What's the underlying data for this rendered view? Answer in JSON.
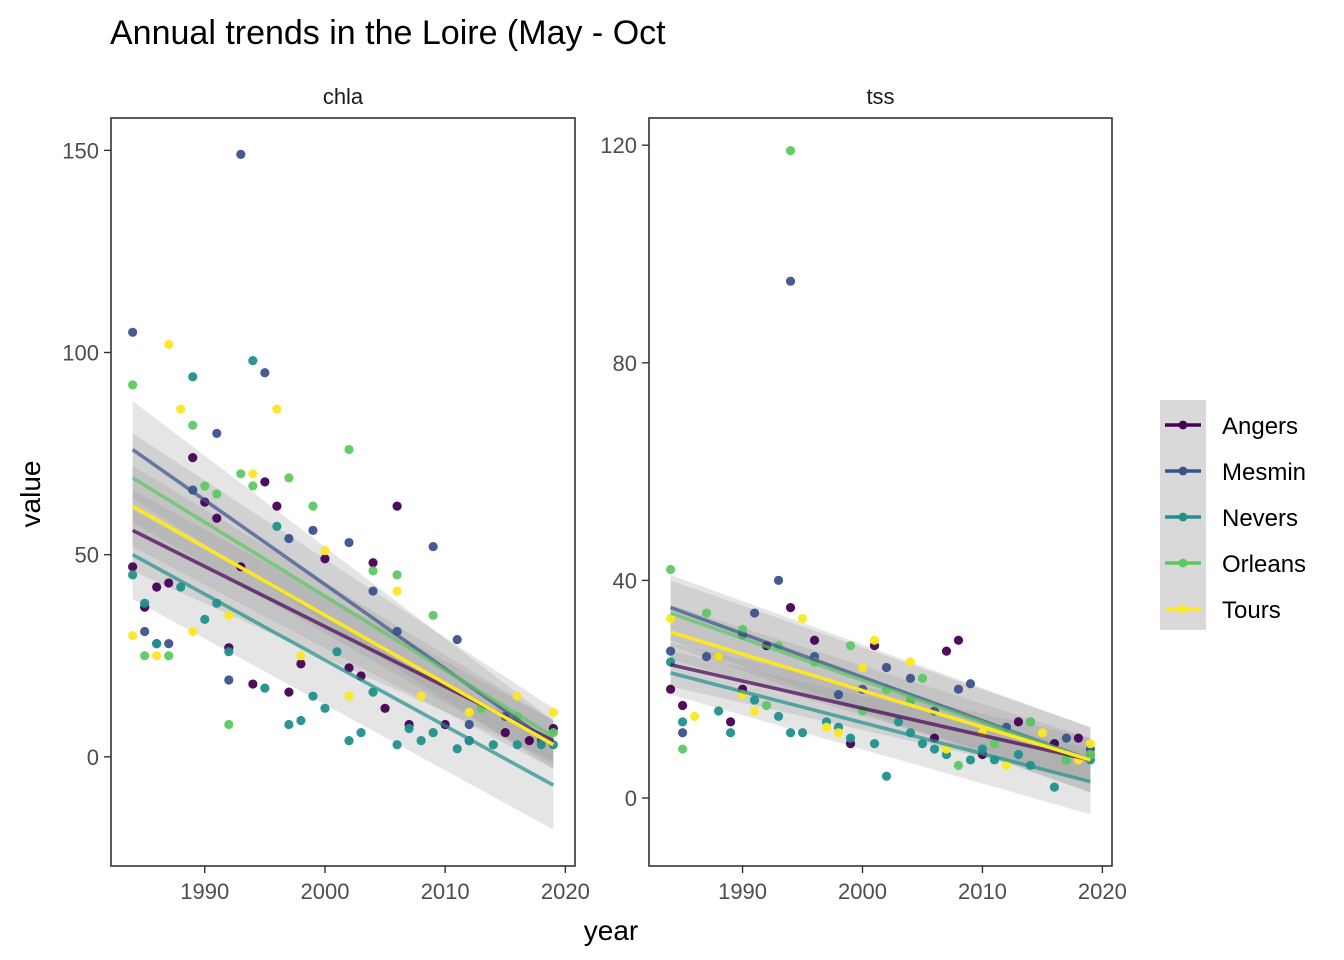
{
  "colors": {
    "Angers": "#440154",
    "Mesmin": "#3b528b",
    "Nevers": "#21908c",
    "Orleans": "#5dc863",
    "Tours": "#fde725",
    "ribbon": "#999999",
    "panel_border": "#333333",
    "axis_text": "#4d4d4d"
  },
  "chart_data": {
    "type": "scatter",
    "title": "Annual trends in the Loire (May - Oct",
    "xlabel": "year",
    "ylabel": "value",
    "legend": {
      "placement": "right",
      "entries": [
        "Angers",
        "Mesmin",
        "Nevers",
        "Orleans",
        "Tours"
      ]
    },
    "grid": false,
    "panels": [
      {
        "name": "chla",
        "xlim": [
          1982.2,
          2020.8
        ],
        "ylim": [
          -27,
          158
        ],
        "xticks": [
          1990,
          2000,
          2010,
          2020
        ],
        "yticks": [
          0,
          50,
          100,
          150
        ],
        "series": [
          {
            "name": "Angers",
            "points": [
              [
                1984,
                47
              ],
              [
                1985,
                37
              ],
              [
                1986,
                42
              ],
              [
                1987,
                43
              ],
              [
                1989,
                74
              ],
              [
                1990,
                63
              ],
              [
                1991,
                59
              ],
              [
                1992,
                27
              ],
              [
                1993,
                47
              ],
              [
                1994,
                18
              ],
              [
                1995,
                68
              ],
              [
                1996,
                62
              ],
              [
                1997,
                16
              ],
              [
                1998,
                23
              ],
              [
                2000,
                49
              ],
              [
                2002,
                22
              ],
              [
                2003,
                20
              ],
              [
                2004,
                48
              ],
              [
                2005,
                12
              ],
              [
                2006,
                62
              ],
              [
                2007,
                8
              ],
              [
                2010,
                8
              ],
              [
                2012,
                4
              ],
              [
                2015,
                6
              ],
              [
                2017,
                4
              ],
              [
                2019,
                7
              ]
            ],
            "fit": [
              56,
              4
            ],
            "se": [
              10,
              5
            ]
          },
          {
            "name": "Mesmin",
            "points": [
              [
                1984,
                105
              ],
              [
                1985,
                31
              ],
              [
                1986,
                28
              ],
              [
                1987,
                28
              ],
              [
                1989,
                66
              ],
              [
                1991,
                80
              ],
              [
                1992,
                19
              ],
              [
                1993,
                149
              ],
              [
                1995,
                95
              ],
              [
                1997,
                54
              ],
              [
                1999,
                56
              ],
              [
                2002,
                53
              ],
              [
                2004,
                41
              ],
              [
                2006,
                31
              ],
              [
                2009,
                52
              ],
              [
                2011,
                29
              ],
              [
                2012,
                8
              ],
              [
                2015,
                10
              ],
              [
                2018,
                4
              ]
            ],
            "fit": [
              76,
              3
            ],
            "se": [
              12,
              6
            ]
          },
          {
            "name": "Nevers",
            "points": [
              [
                1984,
                45
              ],
              [
                1985,
                38
              ],
              [
                1986,
                28
              ],
              [
                1988,
                42
              ],
              [
                1989,
                94
              ],
              [
                1990,
                34
              ],
              [
                1991,
                38
              ],
              [
                1992,
                26
              ],
              [
                1994,
                98
              ],
              [
                1995,
                17
              ],
              [
                1996,
                57
              ],
              [
                1997,
                8
              ],
              [
                1998,
                9
              ],
              [
                1999,
                15
              ],
              [
                2000,
                12
              ],
              [
                2001,
                26
              ],
              [
                2002,
                4
              ],
              [
                2003,
                6
              ],
              [
                2004,
                16
              ],
              [
                2006,
                3
              ],
              [
                2007,
                7
              ],
              [
                2008,
                4
              ],
              [
                2009,
                6
              ],
              [
                2011,
                2
              ],
              [
                2012,
                4
              ],
              [
                2014,
                3
              ],
              [
                2016,
                3
              ],
              [
                2018,
                3
              ],
              [
                2019,
                3
              ]
            ],
            "fit": [
              50,
              -7
            ],
            "se": [
              11,
              11
            ]
          },
          {
            "name": "Orleans",
            "points": [
              [
                1984,
                92
              ],
              [
                1985,
                25
              ],
              [
                1987,
                25
              ],
              [
                1989,
                82
              ],
              [
                1990,
                67
              ],
              [
                1991,
                65
              ],
              [
                1992,
                8
              ],
              [
                1993,
                70
              ],
              [
                1994,
                67
              ],
              [
                1997,
                69
              ],
              [
                1999,
                62
              ],
              [
                2002,
                76
              ],
              [
                2004,
                46
              ],
              [
                2006,
                45
              ],
              [
                2009,
                35
              ],
              [
                2013,
                12
              ],
              [
                2016,
                10
              ],
              [
                2019,
                6
              ]
            ],
            "fit": [
              69,
              5
            ],
            "se": [
              11,
              7
            ]
          },
          {
            "name": "Tours",
            "points": [
              [
                1984,
                30
              ],
              [
                1986,
                25
              ],
              [
                1987,
                102
              ],
              [
                1988,
                86
              ],
              [
                1989,
                31
              ],
              [
                1992,
                35
              ],
              [
                1994,
                70
              ],
              [
                1996,
                86
              ],
              [
                1998,
                25
              ],
              [
                2000,
                51
              ],
              [
                2002,
                15
              ],
              [
                2006,
                41
              ],
              [
                2008,
                15
              ],
              [
                2012,
                11
              ],
              [
                2016,
                15
              ],
              [
                2019,
                11
              ]
            ],
            "fit": [
              62,
              3
            ],
            "se": [
              10,
              6
            ]
          }
        ]
      },
      {
        "name": "tss",
        "xlim": [
          1982.2,
          2020.8
        ],
        "ylim": [
          -12.5,
          125
        ],
        "xticks": [
          1990,
          2000,
          2010,
          2020
        ],
        "yticks": [
          0,
          40,
          80,
          120
        ],
        "series": [
          {
            "name": "Angers",
            "points": [
              [
                1984,
                20
              ],
              [
                1985,
                17
              ],
              [
                1988,
                26
              ],
              [
                1989,
                14
              ],
              [
                1990,
                20
              ],
              [
                1992,
                28
              ],
              [
                1994,
                35
              ],
              [
                1996,
                29
              ],
              [
                1999,
                10
              ],
              [
                2001,
                28
              ],
              [
                2004,
                18
              ],
              [
                2006,
                11
              ],
              [
                2007,
                27
              ],
              [
                2008,
                29
              ],
              [
                2010,
                8
              ],
              [
                2013,
                14
              ],
              [
                2016,
                10
              ],
              [
                2018,
                11
              ],
              [
                2019,
                8
              ]
            ],
            "fit": [
              24.5,
              7
            ],
            "se": [
              4,
              4
            ]
          },
          {
            "name": "Mesmin",
            "points": [
              [
                1984,
                27
              ],
              [
                1985,
                12
              ],
              [
                1987,
                26
              ],
              [
                1990,
                30
              ],
              [
                1991,
                34
              ],
              [
                1993,
                40
              ],
              [
                1994,
                95
              ],
              [
                1996,
                26
              ],
              [
                1998,
                19
              ],
              [
                2000,
                20
              ],
              [
                2002,
                24
              ],
              [
                2004,
                22
              ],
              [
                2006,
                16
              ],
              [
                2008,
                20
              ],
              [
                2009,
                21
              ],
              [
                2012,
                13
              ],
              [
                2014,
                14
              ],
              [
                2017,
                11
              ],
              [
                2019,
                9
              ]
            ],
            "fit": [
              35,
              7
            ],
            "se": [
              6,
              6
            ]
          },
          {
            "name": "Nevers",
            "points": [
              [
                1984,
                25
              ],
              [
                1985,
                14
              ],
              [
                1988,
                16
              ],
              [
                1989,
                12
              ],
              [
                1991,
                18
              ],
              [
                1993,
                15
              ],
              [
                1994,
                12
              ],
              [
                1995,
                12
              ],
              [
                1997,
                14
              ],
              [
                1998,
                13
              ],
              [
                1999,
                11
              ],
              [
                2001,
                10
              ],
              [
                2002,
                4
              ],
              [
                2003,
                14
              ],
              [
                2004,
                12
              ],
              [
                2005,
                10
              ],
              [
                2006,
                9
              ],
              [
                2007,
                8
              ],
              [
                2009,
                7
              ],
              [
                2010,
                9
              ],
              [
                2011,
                7
              ],
              [
                2013,
                8
              ],
              [
                2014,
                6
              ],
              [
                2016,
                2
              ],
              [
                2017,
                7
              ],
              [
                2019,
                7
              ]
            ],
            "fit": [
              23,
              3
            ],
            "se": [
              4,
              6
            ]
          },
          {
            "name": "Orleans",
            "points": [
              [
                1984,
                42
              ],
              [
                1985,
                9
              ],
              [
                1987,
                34
              ],
              [
                1990,
                31
              ],
              [
                1992,
                17
              ],
              [
                1993,
                28
              ],
              [
                1994,
                119
              ],
              [
                1996,
                25
              ],
              [
                1999,
                28
              ],
              [
                2000,
                16
              ],
              [
                2002,
                20
              ],
              [
                2004,
                18
              ],
              [
                2005,
                22
              ],
              [
                2008,
                6
              ],
              [
                2011,
                10
              ],
              [
                2014,
                14
              ],
              [
                2017,
                7
              ],
              [
                2019,
                8
              ]
            ],
            "fit": [
              34,
              7
            ],
            "se": [
              6,
              6
            ]
          },
          {
            "name": "Tours",
            "points": [
              [
                1984,
                33
              ],
              [
                1986,
                15
              ],
              [
                1988,
                26
              ],
              [
                1990,
                19
              ],
              [
                1991,
                16
              ],
              [
                1995,
                33
              ],
              [
                1997,
                13
              ],
              [
                1998,
                12
              ],
              [
                2000,
                24
              ],
              [
                2001,
                29
              ],
              [
                2004,
                25
              ],
              [
                2007,
                9
              ],
              [
                2010,
                12
              ],
              [
                2012,
                6
              ],
              [
                2015,
                12
              ],
              [
                2018,
                7
              ],
              [
                2019,
                10
              ]
            ],
            "fit": [
              30.5,
              7
            ],
            "se": [
              5,
              4
            ]
          }
        ]
      }
    ]
  }
}
